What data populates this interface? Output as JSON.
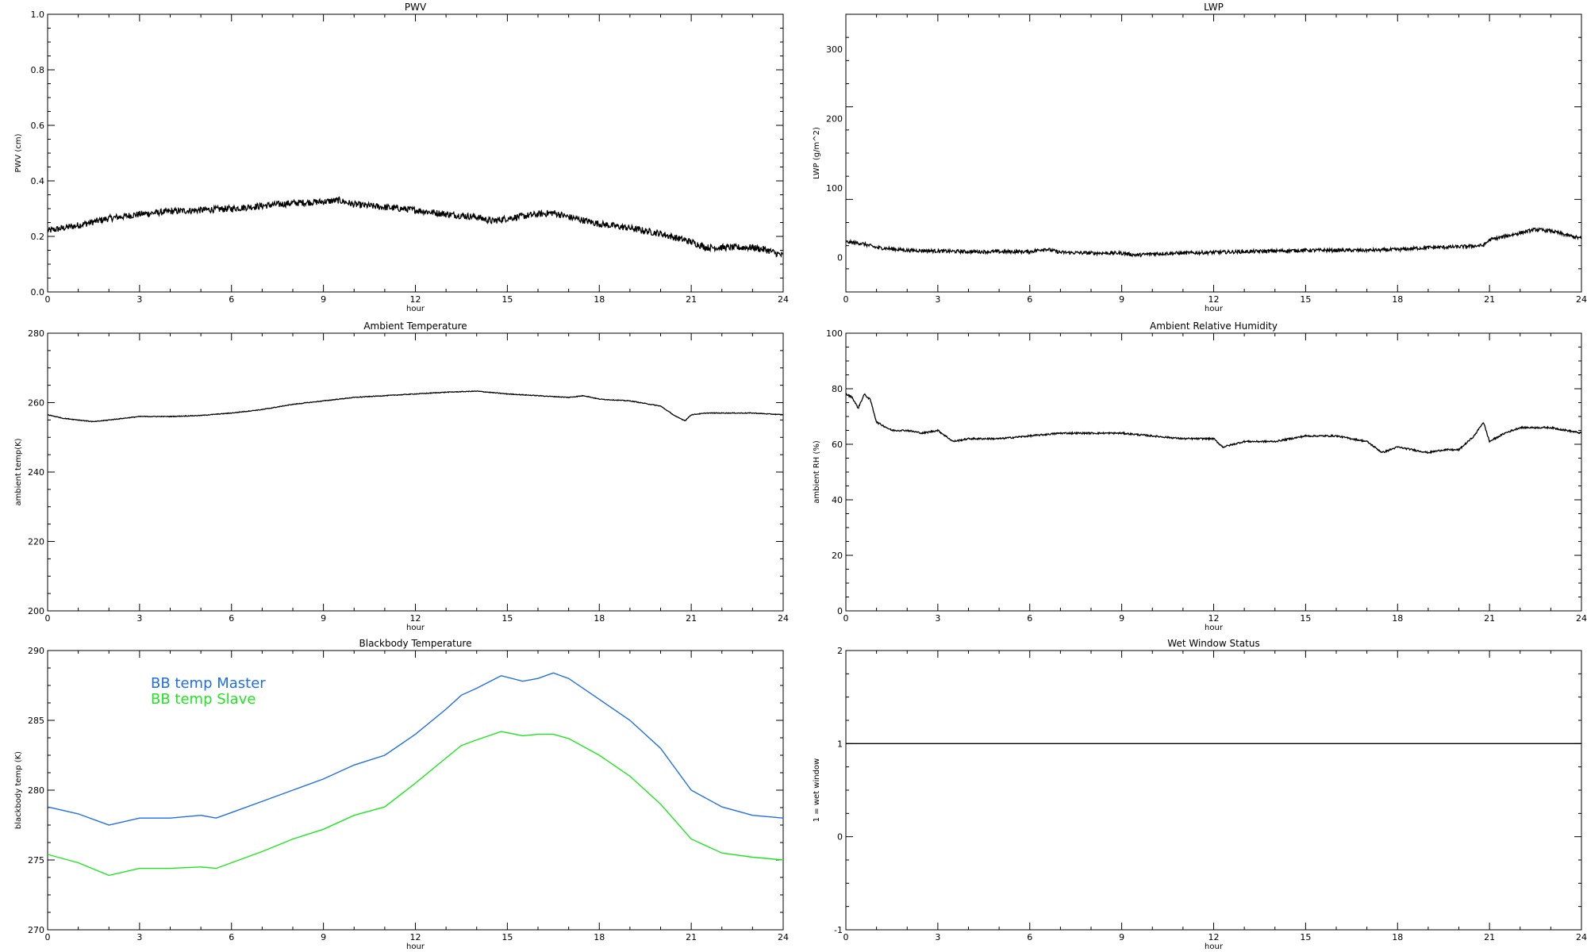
{
  "chart_data": [
    {
      "type": "line",
      "title": "PWV",
      "xlabel": "hour",
      "ylabel": "PWV (cm)",
      "xlim": [
        0,
        24
      ],
      "ylim": [
        0,
        1
      ],
      "xticks": [
        "0",
        "3",
        "6",
        "9",
        "12",
        "15",
        "18",
        "21",
        "24"
      ],
      "yticks": [
        "0.0",
        "0.2",
        "0.4",
        "0.6",
        "0.8",
        "1.0"
      ],
      "series": [
        {
          "color": "#000000",
          "noise": 0.012,
          "points": [
            [
              0,
              0.22
            ],
            [
              1,
              0.24
            ],
            [
              2,
              0.265
            ],
            [
              3,
              0.28
            ],
            [
              4,
              0.29
            ],
            [
              5,
              0.295
            ],
            [
              6,
              0.3
            ],
            [
              7,
              0.31
            ],
            [
              8,
              0.32
            ],
            [
              9,
              0.325
            ],
            [
              9.5,
              0.33
            ],
            [
              10,
              0.315
            ],
            [
              11,
              0.305
            ],
            [
              12,
              0.295
            ],
            [
              13,
              0.28
            ],
            [
              14,
              0.27
            ],
            [
              14.5,
              0.255
            ],
            [
              15,
              0.265
            ],
            [
              16,
              0.28
            ],
            [
              16.5,
              0.285
            ],
            [
              17,
              0.27
            ],
            [
              18,
              0.245
            ],
            [
              19,
              0.23
            ],
            [
              20,
              0.21
            ],
            [
              21,
              0.18
            ],
            [
              21.5,
              0.16
            ],
            [
              22,
              0.16
            ],
            [
              23,
              0.16
            ],
            [
              23.5,
              0.15
            ],
            [
              24,
              0.13
            ]
          ]
        }
      ]
    },
    {
      "type": "line",
      "title": "LWP",
      "xlabel": "hour",
      "ylabel": "LWP (g/m^2)",
      "xlim": [
        0,
        24
      ],
      "ylim": [
        -50,
        350
      ],
      "xticks": [
        "0",
        "3",
        "6",
        "9",
        "12",
        "15",
        "18",
        "21",
        "24"
      ],
      "yticks": [
        "0",
        "100",
        "200",
        "300"
      ],
      "series": [
        {
          "color": "#000000",
          "noise": 2.5,
          "points": [
            [
              0,
              22
            ],
            [
              0.5,
              20
            ],
            [
              1,
              14
            ],
            [
              2,
              10
            ],
            [
              3,
              9
            ],
            [
              4,
              8
            ],
            [
              5,
              8
            ],
            [
              6,
              8
            ],
            [
              6.5,
              12
            ],
            [
              7,
              7
            ],
            [
              8,
              6
            ],
            [
              9,
              6
            ],
            [
              9.5,
              3
            ],
            [
              10,
              5
            ],
            [
              11,
              6
            ],
            [
              12,
              7
            ],
            [
              13,
              8
            ],
            [
              14,
              9
            ],
            [
              15,
              10
            ],
            [
              16,
              10
            ],
            [
              17,
              10
            ],
            [
              18,
              11
            ],
            [
              19,
              14
            ],
            [
              20,
              15
            ],
            [
              20.8,
              17
            ],
            [
              21,
              25
            ],
            [
              21.5,
              30
            ],
            [
              22,
              35
            ],
            [
              22.5,
              40
            ],
            [
              23,
              38
            ],
            [
              23.5,
              32
            ],
            [
              24,
              27
            ]
          ]
        }
      ]
    },
    {
      "type": "line",
      "title": "Ambient Temperature",
      "xlabel": "hour",
      "ylabel": "ambient temp(K)",
      "xlim": [
        0,
        24
      ],
      "ylim": [
        200,
        280
      ],
      "xticks": [
        "0",
        "3",
        "6",
        "9",
        "12",
        "15",
        "18",
        "21",
        "24"
      ],
      "yticks": [
        "200",
        "220",
        "240",
        "260",
        "280"
      ],
      "series": [
        {
          "color": "#000000",
          "noise": 0.1,
          "points": [
            [
              0,
              256.5
            ],
            [
              0.5,
              255.5
            ],
            [
              1,
              255
            ],
            [
              1.5,
              254.5
            ],
            [
              2,
              255
            ],
            [
              3,
              256
            ],
            [
              4,
              256
            ],
            [
              5,
              256.3
            ],
            [
              6,
              257
            ],
            [
              7,
              258
            ],
            [
              8,
              259.5
            ],
            [
              9,
              260.5
            ],
            [
              9.5,
              261
            ],
            [
              10,
              261.5
            ],
            [
              11,
              262
            ],
            [
              12,
              262.5
            ],
            [
              13,
              263
            ],
            [
              14,
              263.3
            ],
            [
              15,
              262.5
            ],
            [
              16,
              262
            ],
            [
              17,
              261.5
            ],
            [
              17.5,
              262
            ],
            [
              18,
              261
            ],
            [
              19,
              260.5
            ],
            [
              20,
              259
            ],
            [
              20.5,
              256
            ],
            [
              20.8,
              254.8
            ],
            [
              21,
              256.5
            ],
            [
              21.5,
              257
            ],
            [
              22,
              257
            ],
            [
              23,
              257
            ],
            [
              24,
              256.5
            ]
          ]
        }
      ]
    },
    {
      "type": "line",
      "title": "Ambient Relative Humidity",
      "xlabel": "hour",
      "ylabel": "ambient RH (%)",
      "xlim": [
        0,
        24
      ],
      "ylim": [
        0,
        100
      ],
      "xticks": [
        "0",
        "3",
        "6",
        "9",
        "12",
        "15",
        "18",
        "21",
        "24"
      ],
      "yticks": [
        "0",
        "20",
        "40",
        "60",
        "80",
        "100"
      ],
      "series": [
        {
          "color": "#000000",
          "noise": 0.3,
          "points": [
            [
              0,
              78
            ],
            [
              0.2,
              77
            ],
            [
              0.4,
              73
            ],
            [
              0.6,
              78
            ],
            [
              0.8,
              76
            ],
            [
              1,
              68
            ],
            [
              1.5,
              65
            ],
            [
              2,
              65
            ],
            [
              2.5,
              64
            ],
            [
              3,
              65
            ],
            [
              3.5,
              61
            ],
            [
              4,
              62
            ],
            [
              5,
              62
            ],
            [
              6,
              63
            ],
            [
              7,
              64
            ],
            [
              8,
              64
            ],
            [
              9,
              64
            ],
            [
              10,
              63
            ],
            [
              11,
              62
            ],
            [
              12,
              62
            ],
            [
              12.3,
              59
            ],
            [
              13,
              61
            ],
            [
              14,
              61
            ],
            [
              15,
              63
            ],
            [
              16,
              63
            ],
            [
              17,
              61
            ],
            [
              17.5,
              57
            ],
            [
              18,
              59
            ],
            [
              19,
              57
            ],
            [
              19.5,
              58
            ],
            [
              20,
              58
            ],
            [
              20.5,
              63
            ],
            [
              20.8,
              68
            ],
            [
              21,
              61
            ],
            [
              21.5,
              64
            ],
            [
              22,
              66
            ],
            [
              23,
              66
            ],
            [
              24,
              64
            ]
          ]
        }
      ]
    },
    {
      "type": "line",
      "title": "Blackbody Temperature",
      "xlabel": "hour",
      "ylabel": "blackbody temp (K)",
      "xlim": [
        0,
        24
      ],
      "ylim": [
        270,
        290
      ],
      "xticks": [
        "0",
        "3",
        "6",
        "9",
        "12",
        "15",
        "18",
        "21",
        "24"
      ],
      "yticks": [
        "270",
        "275",
        "280",
        "285",
        "290"
      ],
      "legend": {
        "placement": "top-left",
        "entries": [
          {
            "label": "BB temp Master",
            "color": "#1f6ee6"
          },
          {
            "label": "BB temp Slave",
            "color": "#1ee61e"
          }
        ]
      },
      "series": [
        {
          "name": "BB temp Master",
          "color": "#1f6ee6",
          "noise": 0,
          "points": [
            [
              0,
              278.8
            ],
            [
              1,
              278.3
            ],
            [
              2,
              277.5
            ],
            [
              3,
              278
            ],
            [
              4,
              278
            ],
            [
              5,
              278.2
            ],
            [
              5.5,
              278
            ],
            [
              6,
              278.4
            ],
            [
              7,
              279.2
            ],
            [
              8,
              280
            ],
            [
              9,
              280.8
            ],
            [
              10,
              281.8
            ],
            [
              11,
              282.5
            ],
            [
              12,
              284
            ],
            [
              13,
              285.8
            ],
            [
              13.5,
              286.8
            ],
            [
              14,
              287.3
            ],
            [
              14.8,
              288.2
            ],
            [
              15.5,
              287.8
            ],
            [
              16,
              288
            ],
            [
              16.5,
              288.4
            ],
            [
              17,
              288
            ],
            [
              18,
              286.5
            ],
            [
              19,
              285
            ],
            [
              20,
              283
            ],
            [
              21,
              280
            ],
            [
              22,
              278.8
            ],
            [
              23,
              278.2
            ],
            [
              24,
              278
            ]
          ]
        },
        {
          "name": "BB temp Slave",
          "color": "#1ee61e",
          "noise": 0,
          "points": [
            [
              0,
              275.4
            ],
            [
              1,
              274.8
            ],
            [
              2,
              273.9
            ],
            [
              3,
              274.4
            ],
            [
              4,
              274.4
            ],
            [
              5,
              274.5
            ],
            [
              5.5,
              274.4
            ],
            [
              6,
              274.8
            ],
            [
              7,
              275.6
            ],
            [
              8,
              276.5
            ],
            [
              9,
              277.2
            ],
            [
              10,
              278.2
            ],
            [
              11,
              278.8
            ],
            [
              12,
              280.5
            ],
            [
              13,
              282.3
            ],
            [
              13.5,
              283.2
            ],
            [
              14,
              283.6
            ],
            [
              14.8,
              284.2
            ],
            [
              15.5,
              283.9
            ],
            [
              16,
              284
            ],
            [
              16.5,
              284
            ],
            [
              17,
              283.7
            ],
            [
              18,
              282.5
            ],
            [
              19,
              281
            ],
            [
              20,
              279
            ],
            [
              21,
              276.5
            ],
            [
              22,
              275.5
            ],
            [
              23,
              275.2
            ],
            [
              24,
              275
            ]
          ]
        }
      ]
    },
    {
      "type": "line",
      "title": "Wet Window Status",
      "xlabel": "hour",
      "ylabel": "1 = wet window",
      "xlim": [
        0,
        24
      ],
      "ylim": [
        -1,
        2
      ],
      "xticks": [
        "0",
        "3",
        "6",
        "9",
        "12",
        "15",
        "18",
        "21",
        "24"
      ],
      "yticks": [
        "-1",
        "0",
        "1",
        "2"
      ],
      "series": [
        {
          "color": "#000000",
          "noise": 0,
          "points": [
            [
              0,
              1
            ],
            [
              24,
              1
            ]
          ]
        }
      ]
    }
  ]
}
